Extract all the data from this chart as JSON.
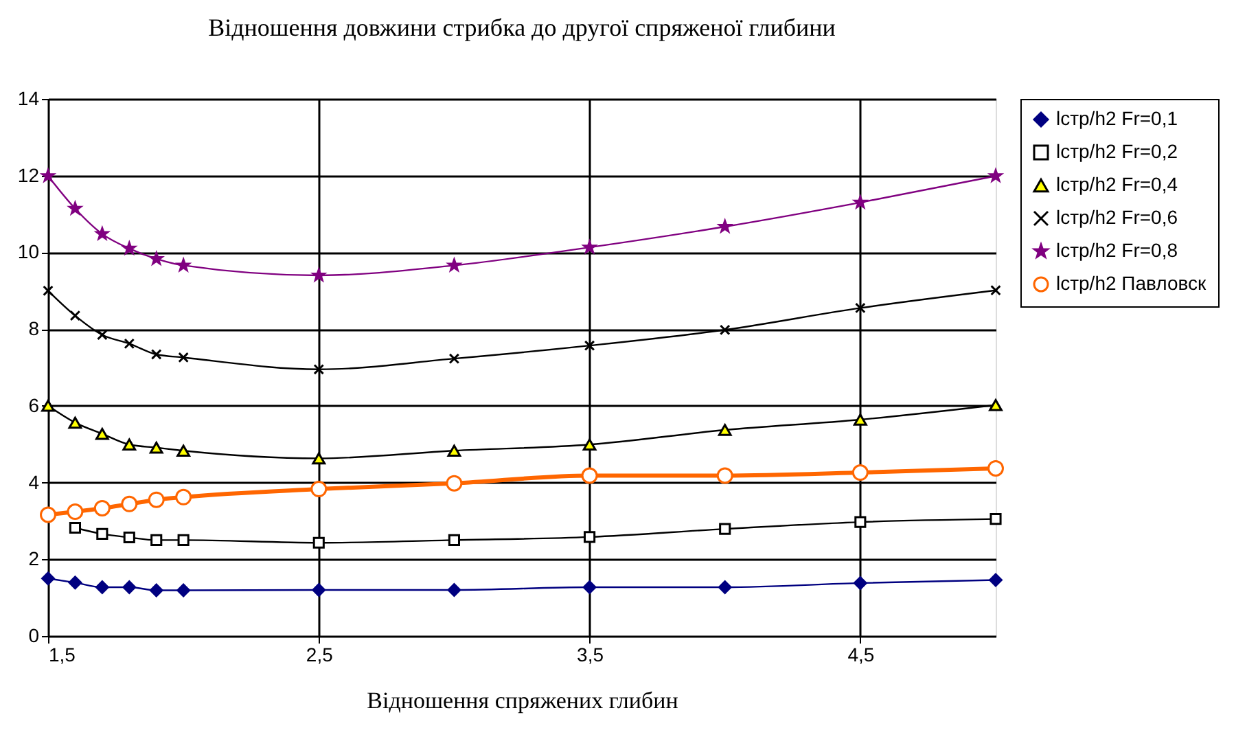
{
  "chart_data": {
    "type": "line",
    "title": "Відношення довжини стрибка до другої спряженої глибини",
    "xlabel": "Відношення спряжених глибин",
    "x": [
      1.5,
      1.6,
      1.7,
      1.8,
      1.9,
      2.0,
      2.5,
      3.0,
      3.5,
      4.0,
      4.5,
      5.0
    ],
    "series": [
      {
        "name": "lстр/h2 Fr=0,1",
        "color": "#000080",
        "marker": "diamond",
        "values": [
          1.5,
          1.39,
          1.27,
          1.27,
          1.19,
          1.19,
          1.2,
          1.2,
          1.27,
          1.27,
          1.38,
          1.46
        ]
      },
      {
        "name": "lстр/h2 Fr=0,2",
        "color": "#000000",
        "marker": "square",
        "values": [
          null,
          2.82,
          2.66,
          2.57,
          2.5,
          2.5,
          2.43,
          2.5,
          2.58,
          2.79,
          2.97,
          3.05
        ]
      },
      {
        "name": "lстр/h2 Fr=0,4",
        "color": "#000000",
        "marker": "triangle",
        "values": [
          6.0,
          5.56,
          5.27,
          4.99,
          4.91,
          4.83,
          4.63,
          4.83,
          4.99,
          5.37,
          5.64,
          6.02
        ]
      },
      {
        "name": "lстр/h2 Fr=0,6",
        "color": "#000000",
        "marker": "cross",
        "values": [
          9.0,
          8.35,
          7.85,
          7.62,
          7.34,
          7.26,
          6.95,
          7.23,
          7.57,
          7.98,
          8.55,
          9.01
        ]
      },
      {
        "name": "lстр/h2 Fr=0,8",
        "color": "#800080",
        "marker": "star",
        "values": [
          11.99,
          11.14,
          10.48,
          10.1,
          9.83,
          9.66,
          9.4,
          9.66,
          10.13,
          10.67,
          11.3,
          11.99
        ]
      },
      {
        "name": "lстр/h2 Павловск",
        "color": "#ff6600",
        "marker": "circle",
        "values": [
          3.16,
          3.24,
          3.33,
          3.44,
          3.55,
          3.62,
          3.83,
          3.98,
          4.18,
          4.18,
          4.26,
          4.37
        ]
      }
    ],
    "xlim": [
      1.5,
      5.0
    ],
    "xticks": [
      {
        "value": 1.5,
        "label": "1,5"
      },
      {
        "value": 2.5,
        "label": "2,5"
      },
      {
        "value": 3.5,
        "label": "3,5"
      },
      {
        "value": 4.5,
        "label": "4,5"
      }
    ],
    "ylim": [
      0,
      14
    ],
    "yticks": [
      0,
      2,
      4,
      6,
      8,
      10,
      12,
      14
    ],
    "grid": true,
    "legend": "right"
  }
}
